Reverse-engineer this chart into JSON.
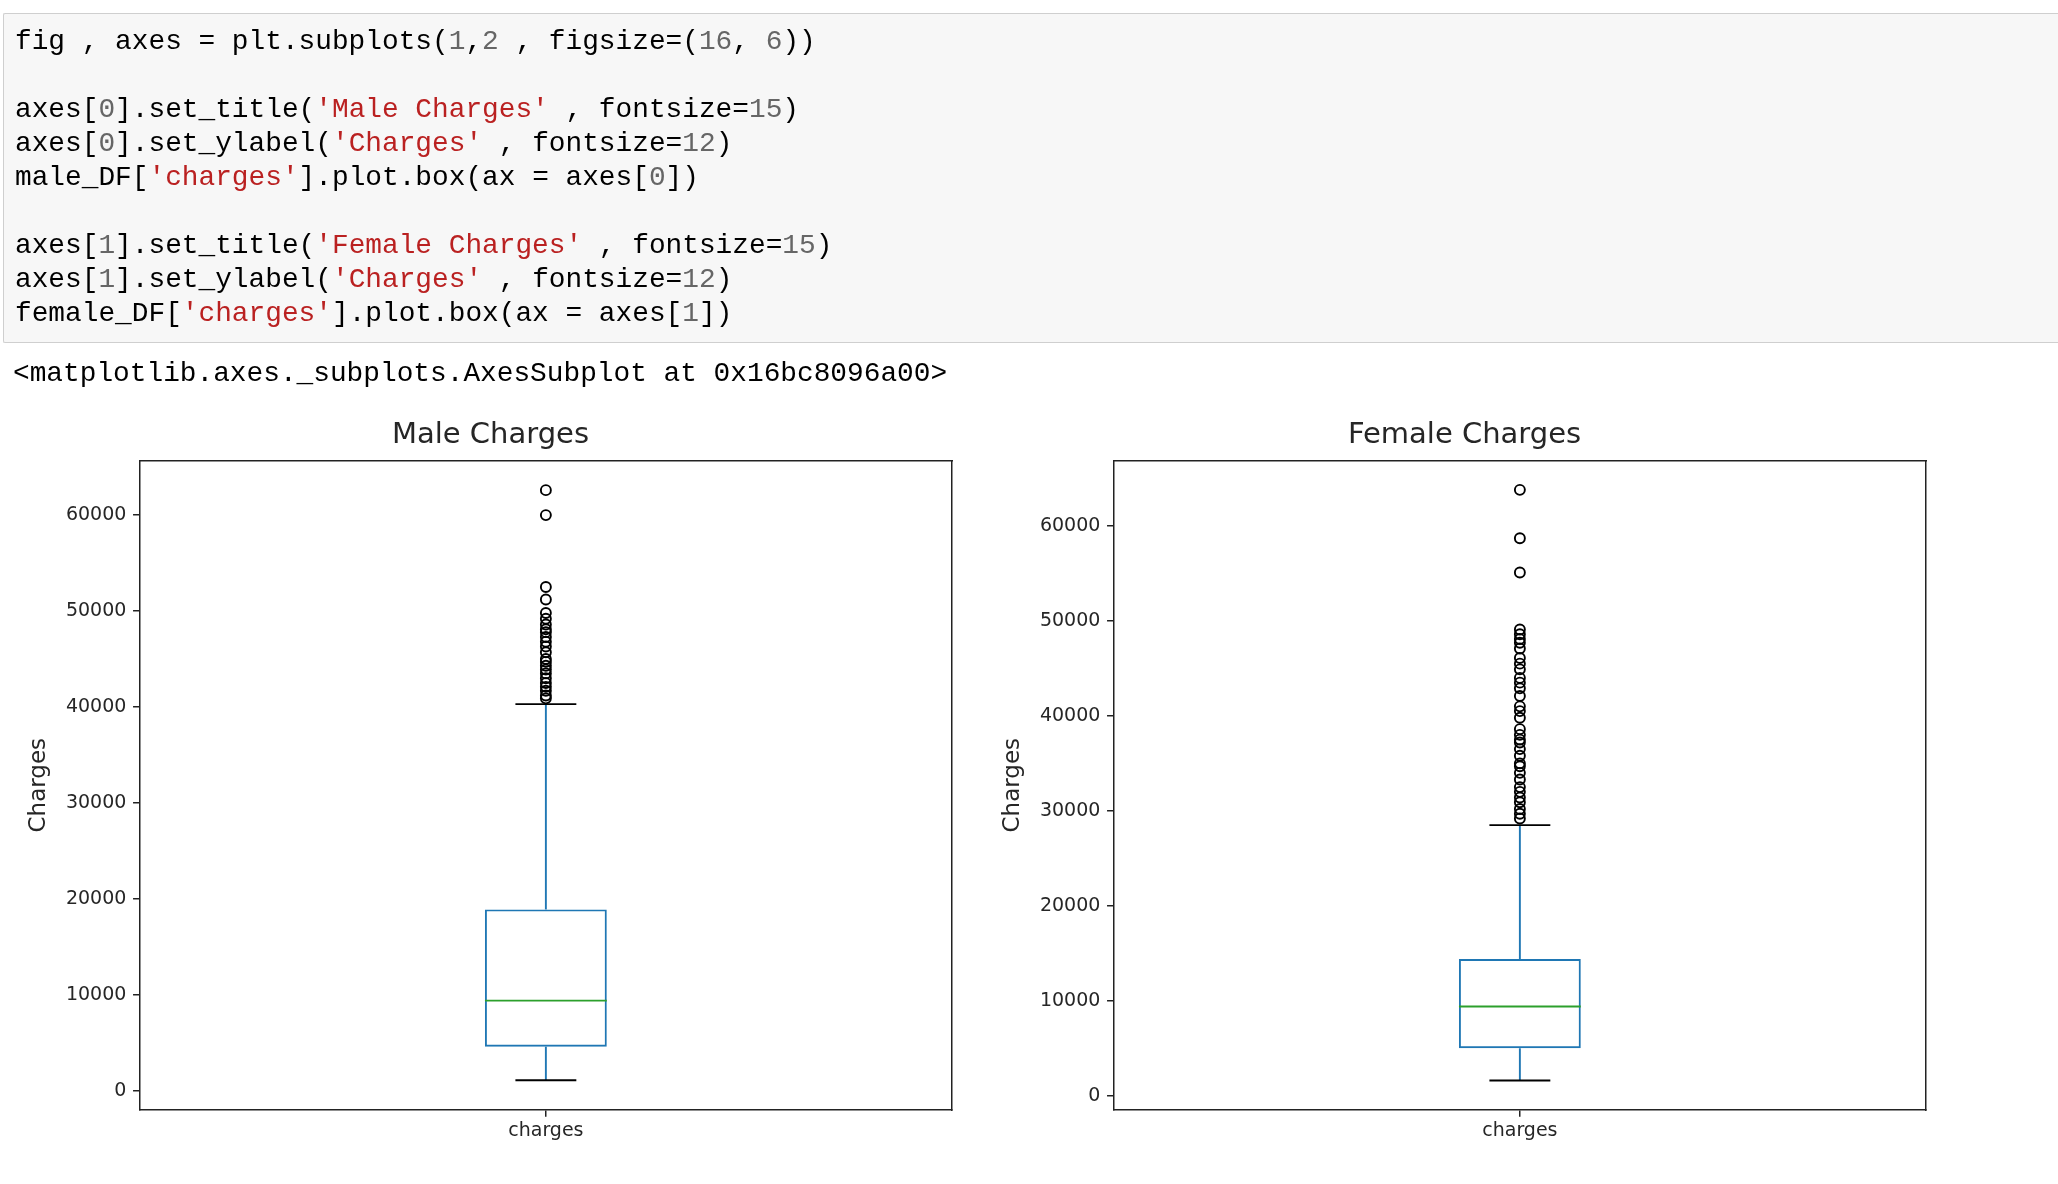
{
  "chart_data": [
    {
      "type": "other",
      "annotations": [
        "fig , axes = plt.subplots(1,2 , figsize=(16, 6))\n\naxes[0].set_title('Male Charges' , fontsize=15)\naxes[0].set_ylabel('Charges' , fontsize=12)\nmale_DF['charges'].plot.box(ax = axes[0])\n\naxes[1].set_title('Female Charges' , fontsize=15)\naxes[1].set_ylabel('Charges' , fontsize=12)\nfemale_DF['charges'].plot.box(ax = axes[1])",
        "<matplotlib.axes._subplots.AxesSubplot at 0x16bc8096a00>"
      ]
    },
    {
      "type": "box",
      "title": "Male Charges",
      "ylabel": "Charges",
      "categories": [
        "charges"
      ],
      "color": "#1f77b4",
      "marker": "circle",
      "boxes": [
        {
          "low": 1100,
          "q1": 4600,
          "median": 9400,
          "q3": 18900,
          "high": 40300,
          "outliers": [
            62600,
            60000,
            52500,
            51200,
            49800,
            49200,
            48600,
            48100,
            47800,
            47300,
            46800,
            46300,
            45700,
            45000,
            44700,
            44300,
            43900,
            43500,
            43000,
            42500,
            42100,
            41700,
            41200,
            40900
          ]
        }
      ],
      "ylim": [
        -2000,
        65700
      ],
      "yticks": [
        0,
        10000,
        20000,
        30000,
        40000,
        50000,
        60000
      ]
    },
    {
      "type": "box",
      "title": "Female Charges",
      "ylabel": "Charges",
      "categories": [
        "charges"
      ],
      "color": "#1f77b4",
      "marker": "circle",
      "boxes": [
        {
          "low": 1600,
          "q1": 5000,
          "median": 9400,
          "q3": 14400,
          "high": 28500,
          "outliers": [
            63800,
            58700,
            55100,
            49100,
            48600,
            48100,
            47700,
            47100,
            46100,
            45500,
            44900,
            44000,
            43500,
            42900,
            42100,
            41000,
            40500,
            39800,
            38600,
            38000,
            37500,
            37200,
            36500,
            35800,
            35000,
            34700,
            34000,
            33300,
            32500,
            32000,
            31400,
            30900,
            30200,
            29700,
            29200
          ]
        }
      ],
      "ylim": [
        -1500,
        66900
      ],
      "yticks": [
        0,
        10000,
        20000,
        30000,
        40000,
        50000,
        60000
      ]
    }
  ]
}
